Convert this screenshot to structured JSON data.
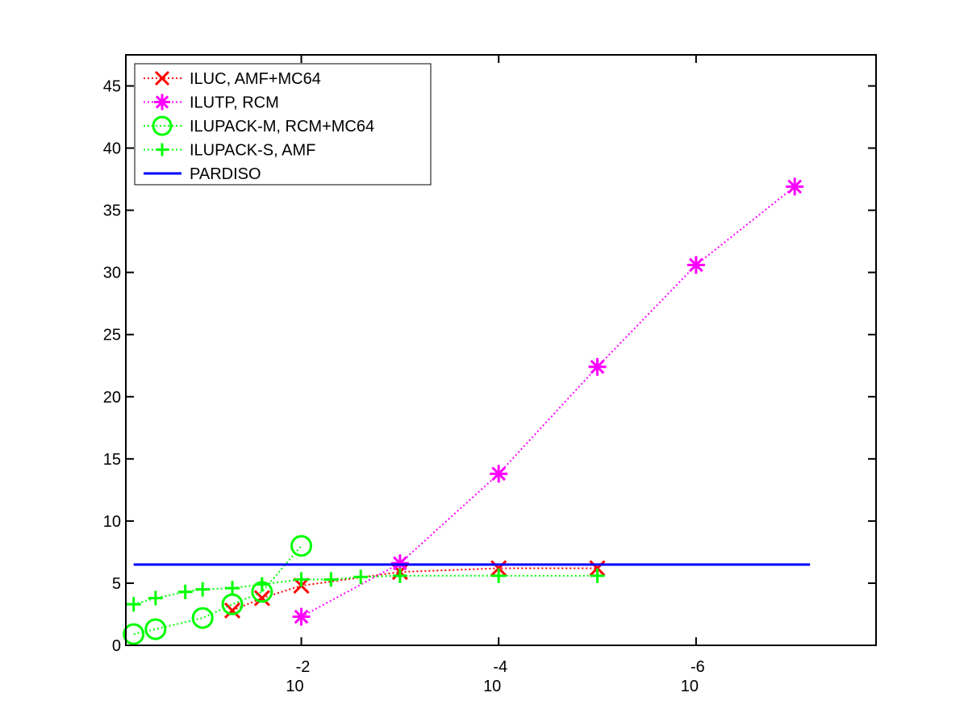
{
  "chart_data": {
    "type": "line",
    "title": "",
    "xlabel": "",
    "ylabel": "",
    "x_scale": "log",
    "x_reversed": true,
    "xlim": [
      0.6,
      1.5e-08
    ],
    "ylim": [
      0,
      47.5
    ],
    "y_ticks": [
      0,
      5,
      10,
      15,
      20,
      25,
      30,
      35,
      40,
      45
    ],
    "x_ticks": [
      {
        "value": 0.01,
        "base": "10",
        "exponent": "-2"
      },
      {
        "value": 0.0001,
        "base": "10",
        "exponent": "-4"
      },
      {
        "value": 1e-06,
        "base": "10",
        "exponent": "-6"
      }
    ],
    "grid": false,
    "legend_position": "top-left",
    "series": [
      {
        "name": "ILUC, AMF+MC64",
        "color": "#ff0000",
        "marker": "x",
        "line": "dotted",
        "x": [
          0.05,
          0.025,
          0.01,
          0.001,
          0.0001,
          1e-05
        ],
        "y": [
          2.8,
          3.8,
          4.8,
          5.9,
          6.2,
          6.2
        ]
      },
      {
        "name": "ILUTP, RCM",
        "color": "#ff00ff",
        "marker": "asterisk",
        "line": "dotted",
        "x": [
          0.01,
          0.001,
          0.0001,
          1e-05,
          1e-06,
          1e-07
        ],
        "y": [
          2.3,
          6.6,
          13.8,
          22.4,
          30.6,
          36.9
        ]
      },
      {
        "name": "ILUPACK-M, RCM+MC64",
        "color": "#00ff00",
        "marker": "circle",
        "line": "dotted",
        "x": [
          0.5,
          0.3,
          0.1,
          0.05,
          0.025,
          0.01
        ],
        "y": [
          0.9,
          1.3,
          2.2,
          3.3,
          4.3,
          8.0
        ]
      },
      {
        "name": "ILUPACK-S, AMF",
        "color": "#00ff00",
        "marker": "plus",
        "line": "dotted",
        "x": [
          0.5,
          0.3,
          0.15,
          0.1,
          0.05,
          0.025,
          0.01,
          0.005,
          0.0025,
          0.001,
          0.0001,
          1e-05
        ],
        "y": [
          3.3,
          3.8,
          4.3,
          4.5,
          4.6,
          4.9,
          5.3,
          5.3,
          5.5,
          5.6,
          5.6,
          5.6
        ]
      },
      {
        "name": "PARDISO",
        "color": "#0000ff",
        "marker": "none",
        "line": "solid",
        "constant_y": 6.5
      }
    ]
  }
}
